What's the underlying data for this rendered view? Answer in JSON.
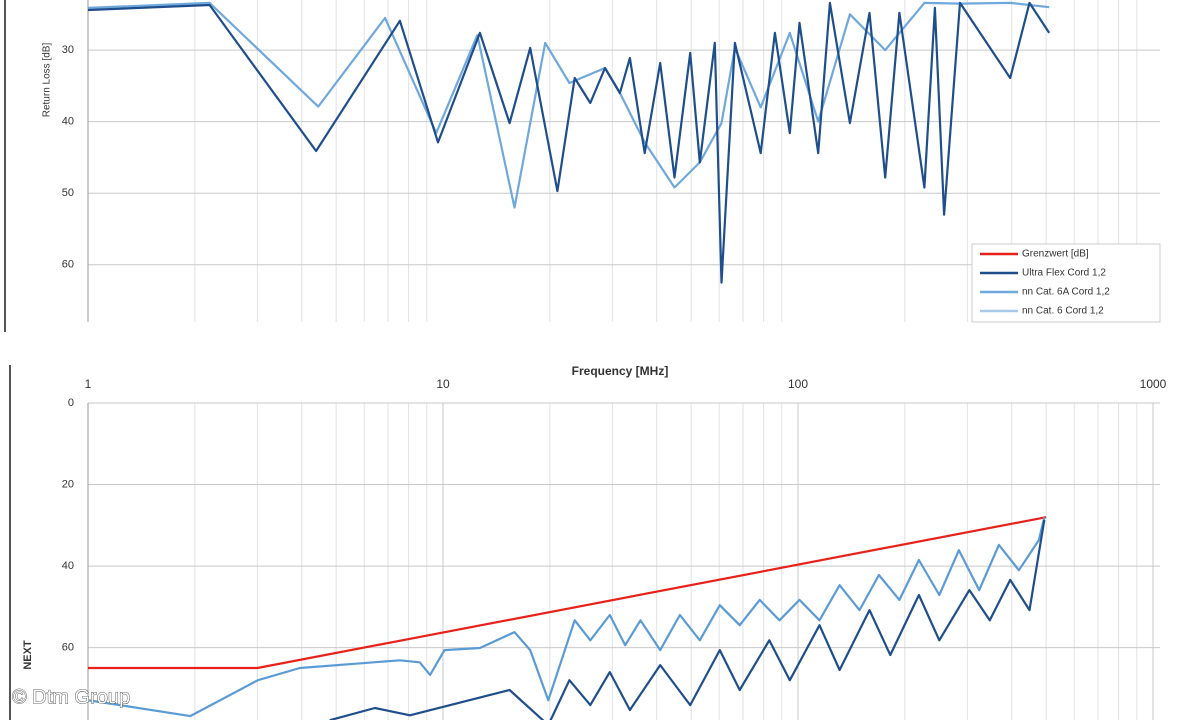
{
  "chart_data": [
    {
      "type": "line",
      "log_x": true,
      "y_inverted": true,
      "grid": true,
      "y_label": "Return Loss [dB]",
      "xlim": [
        1,
        1000
      ],
      "ylim": [
        23,
        68
      ],
      "yticks": [
        30,
        40,
        50,
        60
      ],
      "legend_position": "lower right",
      "legend": [
        {
          "name": "Grenzwert [dB]",
          "color": "#e8221a"
        },
        {
          "name": "Ultra Flex Cord 1,2",
          "color": "#1f4e8c"
        },
        {
          "name": "nn Cat. 6A Cord 1,2",
          "color": "#6fa8dc"
        },
        {
          "name": "nn Cat. 6 Cord 1,2",
          "color": "#a9c9e8"
        }
      ],
      "series": [
        {
          "color": "#6fa8dc",
          "x": [
            1,
            2.2,
            4.45,
            6.87,
            9.57,
            12.5,
            15.9,
            19.4,
            22.7,
            28.6,
            31.5,
            37,
            44.9,
            52.9,
            60.9,
            66.4,
            78.5,
            94.8,
            114,
            140,
            176,
            227,
            286,
            396,
            510
          ],
          "values": [
            24.1,
            23.4,
            37.9,
            25.5,
            41.6,
            27.9,
            52,
            29,
            34.6,
            32.5,
            36,
            42.9,
            49.2,
            45.7,
            40.2,
            29.7,
            38,
            27.6,
            40,
            25,
            30,
            23.4,
            23.5,
            23.4,
            24
          ]
        },
        {
          "color": "#1f4e8c",
          "x": [
            1,
            2.2,
            4.39,
            7.56,
            9.68,
            12.7,
            15.4,
            17.6,
            21,
            23.5,
            26,
            28.6,
            31.5,
            33.6,
            37,
            40.9,
            44.9,
            49.7,
            52.9,
            58.3,
            60.9,
            66.4,
            78.5,
            86.1,
            94.8,
            101,
            114,
            123,
            140,
            159,
            176,
            193,
            227,
            243,
            258,
            286,
            396,
            449,
            510
          ],
          "values": [
            24.4,
            23.7,
            44.1,
            25.9,
            42.9,
            27.6,
            40.2,
            29.7,
            49.7,
            33.9,
            37.4,
            32.5,
            36,
            31.1,
            44.4,
            31.8,
            47.8,
            30.4,
            45.7,
            29,
            62.5,
            29,
            44.4,
            27.6,
            41.6,
            26.2,
            44.4,
            23.4,
            40.2,
            24.8,
            47.8,
            24.8,
            49.2,
            24.1,
            53,
            23.4,
            33.9,
            23.4,
            27.6
          ]
        }
      ]
    },
    {
      "type": "line",
      "log_x": true,
      "y_inverted": true,
      "grid": true,
      "x_label": "Frequency [MHz]",
      "y_label": "NEXT",
      "xlim": [
        1,
        1000
      ],
      "xticks": [
        1,
        10,
        100,
        1000
      ],
      "ylim": [
        0,
        78
      ],
      "yticks": [
        0,
        20,
        40,
        60
      ],
      "series": [
        {
          "color": "#e8221a",
          "x": [
            1,
            3,
            500
          ],
          "values": [
            65,
            65,
            28
          ]
        },
        {
          "color": "#5b9bd5",
          "x": [
            1,
            1.94,
            3.01,
            3.95,
            7.56,
            8.6,
            9.2,
            10.1,
            12.7,
            15.9,
            17.6,
            19.8,
            23.5,
            26,
            29.5,
            32.6,
            36,
            40.9,
            46.5,
            52.9,
            60.2,
            68.5,
            78,
            88.7,
            101,
            115,
            131,
            149,
            169,
            193,
            219,
            250,
            284,
            324,
            368,
            419,
            477,
            494
          ],
          "values": [
            72.9,
            76.8,
            68,
            65,
            63.1,
            63.6,
            66.7,
            60.6,
            60.1,
            56.2,
            60.6,
            72.9,
            53.3,
            58.2,
            52,
            59.4,
            53.3,
            60.6,
            52,
            58.2,
            49.6,
            54.5,
            48.3,
            53.3,
            48.3,
            53.3,
            44.7,
            50.8,
            42.2,
            48.3,
            38.5,
            47.1,
            36.1,
            45.9,
            34.8,
            41,
            33.6,
            28
          ]
        },
        {
          "color": "#1f4e8c",
          "x": [
            4.8,
            6.43,
            8.07,
            15.4,
            19.8,
            22.7,
            26,
            29.5,
            33.6,
            40.9,
            49.7,
            60.2,
            68.5,
            83,
            94.8,
            115,
            131,
            159,
            182,
            219,
            250,
            304,
            347,
            396,
            449,
            494
          ],
          "values": [
            77.8,
            74.8,
            76.6,
            70.4,
            79,
            68,
            74.1,
            66,
            75.3,
            64.3,
            74.1,
            60.6,
            70.4,
            58.2,
            68,
            54.5,
            65.5,
            50.8,
            61.8,
            47.1,
            58.2,
            45.9,
            53.3,
            43.4,
            50.8,
            28.7
          ]
        }
      ]
    }
  ],
  "watermark": "© Dtm Group"
}
